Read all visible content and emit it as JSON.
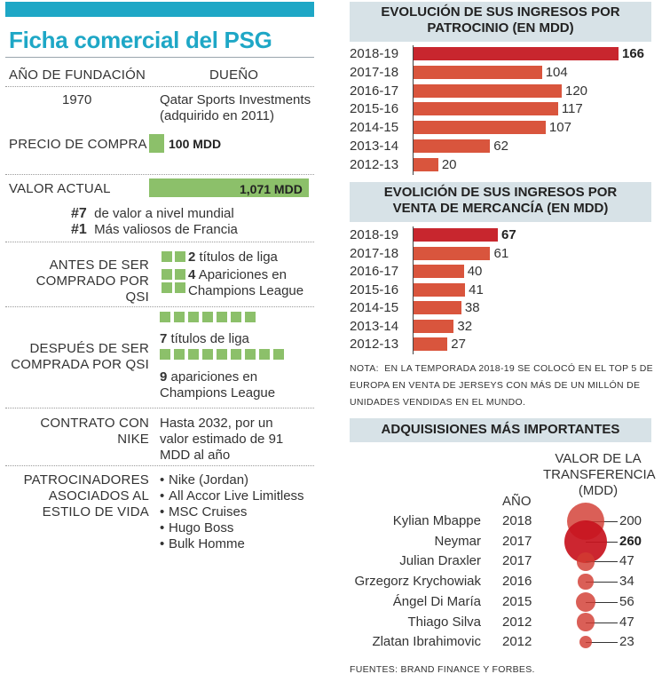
{
  "title": "Ficha comercial del PSG",
  "ficha": {
    "founding_label": "AÑO DE FUNDACIÓN",
    "owner_label": "DUEÑO",
    "founding_year": "1970",
    "owner_line1": "Qatar Sports Investments",
    "owner_line2": "(adquirido en 2011)",
    "purchase_label": "PRECIO DE COMPRA",
    "purchase_value": 100,
    "purchase_text": "100 MDD",
    "current_label": "VALOR ACTUAL",
    "current_value": 1071,
    "current_text": "1,071 MDD",
    "rank1_num": "#7",
    "rank1_text": "de valor a nivel mundial",
    "rank2_num": "#1",
    "rank2_text": "Más valiosos de Francia",
    "before_label_1": "ANTES DE SER",
    "before_label_2": "COMPRADO POR QSI",
    "before_league_num": "2",
    "before_league_text": "títulos de liga",
    "before_cl_num": "4",
    "before_cl_text_1": "Apariciones en",
    "before_cl_text_2": "Champions League",
    "before_league_count": 2,
    "before_cl_count": 4,
    "after_label_1": "DESPUÉS DE SER",
    "after_label_2": "COMPRADA POR QSI",
    "after_league_num": "7",
    "after_league_text": "títulos de liga",
    "after_cl_num": "9",
    "after_cl_text_1": "apariciones en",
    "after_cl_text_2": "Champions League",
    "after_league_count": 7,
    "after_cl_count": 9,
    "nike_label_1": "CONTRATO CON",
    "nike_label_2": "NIKE",
    "nike_text_1": "Hasta 2032, por un",
    "nike_text_2": "valor estimado de 91",
    "nike_text_3": "MDD al año",
    "sponsors_label_1": "PATROCINADORES",
    "sponsors_label_2": "ASOCIADOS AL",
    "sponsors_label_3": "ESTILO DE VIDA",
    "sponsors": [
      "Nike (Jordan)",
      "All Accor Live Limitless",
      "MSC Cruises",
      "Hugo Boss",
      "Bulk Homme"
    ]
  },
  "chart_data": [
    {
      "type": "bar",
      "orientation": "horizontal",
      "title_line1": "EVOLUCIÓN DE SUS INGRESOS POR",
      "title_line2": "PATROCINIO (EN MDD)",
      "categories": [
        "2018-19",
        "2017-18",
        "2016-17",
        "2015-16",
        "2014-15",
        "2013-14",
        "2012-13"
      ],
      "values": [
        166,
        104,
        120,
        117,
        107,
        62,
        20
      ],
      "highlight": "2018-19",
      "colors": {
        "highlight": "#c8262e",
        "bar": "#d9553d"
      }
    },
    {
      "type": "bar",
      "orientation": "horizontal",
      "title_line1": "EVOLICIÓN DE SUS INGRESOS POR",
      "title_line2": "VENTA DE MERCANCÍA (EN MDD)",
      "categories": [
        "2018-19",
        "2017-18",
        "2016-17",
        "2015-16",
        "2014-15",
        "2013-14",
        "2012-13"
      ],
      "values": [
        67,
        61,
        40,
        41,
        38,
        32,
        27
      ],
      "highlight": "2018-19",
      "colors": {
        "highlight": "#c8262e",
        "bar": "#d9553d"
      }
    },
    {
      "type": "scatter",
      "subtype": "bubble",
      "title": "ADQUISISIONES MÁS IMPORTANTES",
      "year_header": "AÑO",
      "value_header_1": "VALOR DE LA",
      "value_header_2": "TRANSFERENCIA",
      "value_header_3": "(MDD)",
      "players": [
        "Kylian Mbappe",
        "Neymar",
        "Julian Draxler",
        "Grzegorz Krychowiak",
        "Ángel Di María",
        "Thiago Silva",
        "Zlatan Ibrahimovic"
      ],
      "years": [
        "2018",
        "2017",
        "2017",
        "2016",
        "2015",
        "2012",
        "2012"
      ],
      "values": [
        200,
        260,
        47,
        34,
        56,
        47,
        23
      ],
      "highlight": "Neymar"
    }
  ],
  "note_prefix": "NOTA:",
  "note_text": "EN LA TEMPORADA 2018-19 SE COLOCÓ EN EL TOP 5 DE EUROPA EN VENTA DE JERSEYS CON MÁS DE UN MILLÓN DE UNIDADES VENDIDAS EN EL MUNDO.",
  "sources": "FUENTES: BRAND FINANCE Y FORBES.",
  "colors": {
    "accent": "#1ea7c6",
    "green": "#8cc06a",
    "red": "#d9553d",
    "dark_red": "#c8262e",
    "header_bg": "#d7e2e7"
  }
}
